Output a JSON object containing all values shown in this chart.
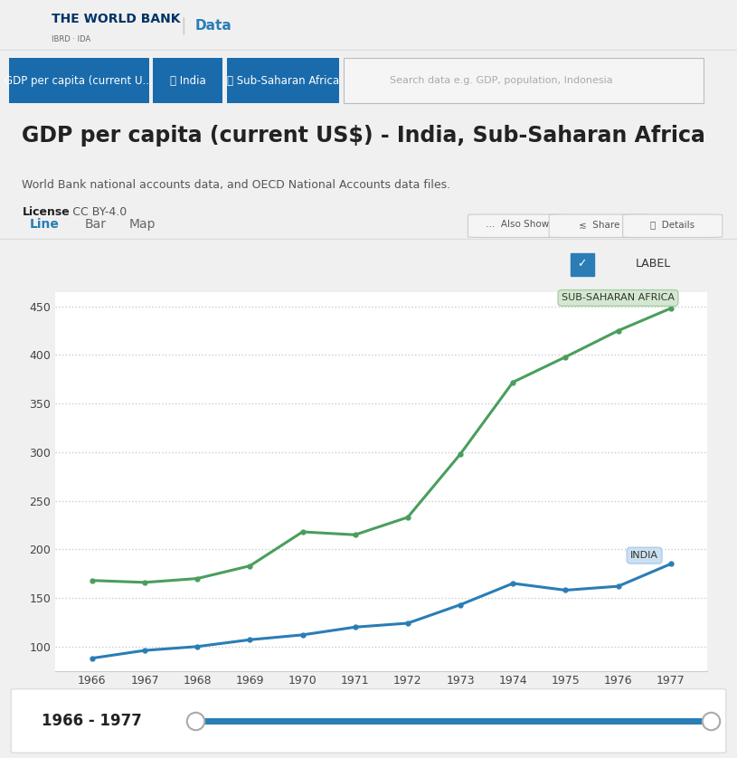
{
  "years": [
    1966,
    1967,
    1968,
    1969,
    1970,
    1971,
    1972,
    1973,
    1974,
    1975,
    1976,
    1977
  ],
  "india": [
    88,
    96,
    100,
    107,
    112,
    120,
    124,
    143,
    165,
    158,
    162,
    185
  ],
  "ssa": [
    168,
    166,
    170,
    183,
    218,
    215,
    233,
    298,
    372,
    398,
    425,
    448
  ],
  "india_color": "#2a7db5",
  "ssa_color": "#4a9e5c",
  "india_label": "INDIA",
  "ssa_label": "SUB-SAHARAN AFRICA",
  "title": "GDP per capita (current US$) - India, Sub-Saharan Africa",
  "subtitle": "World Bank national accounts data, and OECD National Accounts data files.",
  "license_text": "License",
  "license_val": ": CC BY-4.0",
  "ylabel_ticks": [
    100,
    150,
    200,
    250,
    300,
    350,
    400,
    450
  ],
  "ylim": [
    75,
    465
  ],
  "chart_bg": "#ffffff",
  "grid_color": "#cccccc",
  "header_blue": "#1a6bac",
  "tab_active_color": "#2a7db5"
}
